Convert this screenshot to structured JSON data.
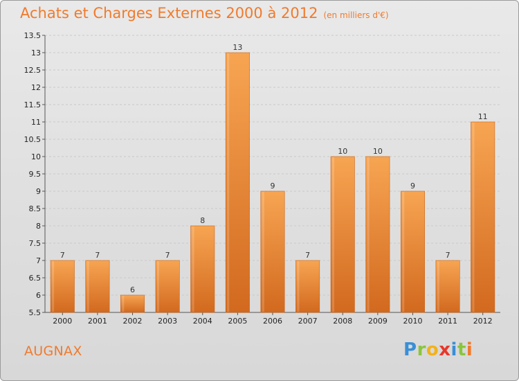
{
  "header": {
    "title": "Achats et Charges Externes 2000 à 2012",
    "subtitle": "(en milliers d'€)"
  },
  "footer": {
    "place": "AUGNAX",
    "logo_letters": [
      "P",
      "r",
      "o",
      "x",
      "i",
      "t",
      "i"
    ]
  },
  "colors": {
    "bar_top": "#f7a552",
    "bar_bottom": "#d2691e",
    "accent": "#f07a2c"
  },
  "chart_data": {
    "type": "bar",
    "title": "Achats et Charges Externes 2000 à 2012",
    "subtitle": "(en milliers d'€)",
    "xlabel": "",
    "ylabel": "",
    "categories": [
      "2000",
      "2001",
      "2002",
      "2003",
      "2004",
      "2005",
      "2006",
      "2007",
      "2008",
      "2009",
      "2010",
      "2011",
      "2012"
    ],
    "values": [
      7,
      7,
      6,
      7,
      8,
      13,
      9,
      7,
      10,
      10,
      9,
      7,
      11
    ],
    "data_labels": [
      "7",
      "7",
      "6",
      "7",
      "8",
      "13",
      "9",
      "7",
      "10",
      "10",
      "9",
      "7",
      "11"
    ],
    "ylim": [
      5.5,
      13.5
    ],
    "yticks": [
      "5.5",
      "6",
      "6.5",
      "7",
      "7.5",
      "8",
      "8.5",
      "9",
      "9.5",
      "10",
      "10.5",
      "11",
      "11.5",
      "12",
      "12.5",
      "13",
      "13.5"
    ],
    "grid": true
  }
}
